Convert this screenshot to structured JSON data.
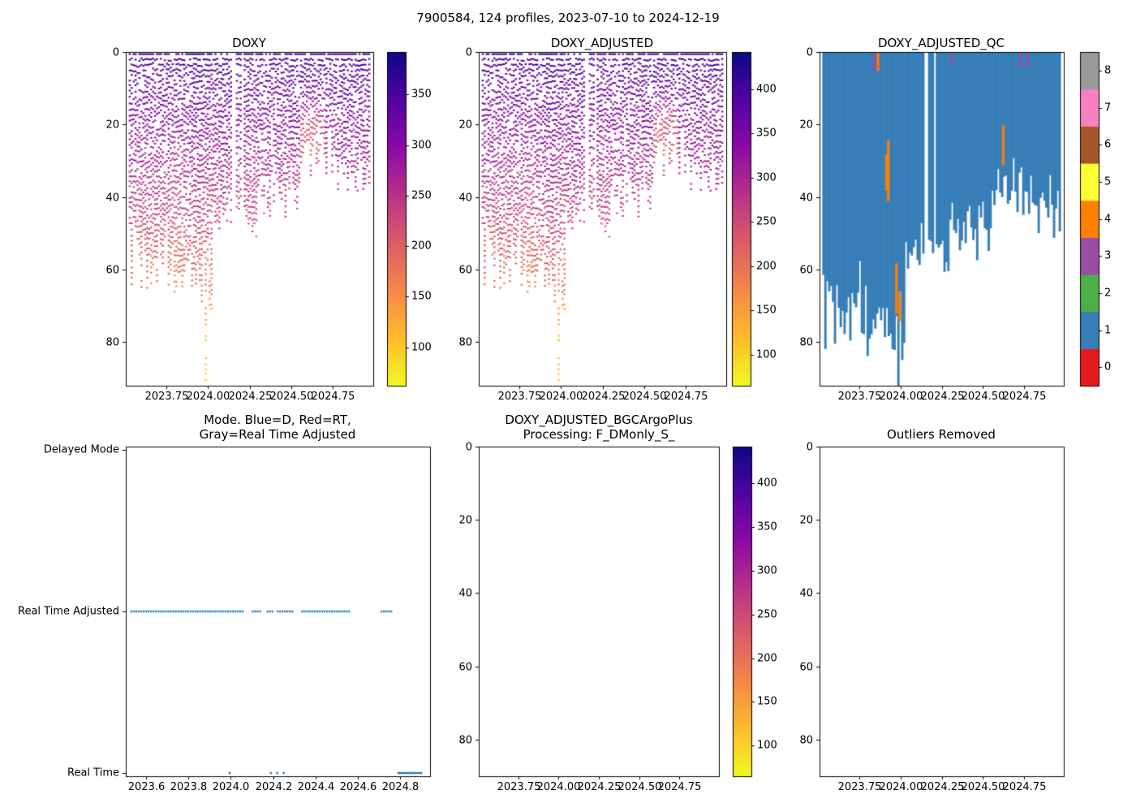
{
  "figure": {
    "title": "7900584, 124 profiles, 2023-07-10 to 2024-12-19",
    "background_color": "#ffffff",
    "float_id": "7900584",
    "n_profiles": 124,
    "date_range": "2023-07-10 to 2024-12-19"
  },
  "chart_data": [
    {
      "id": "doxy",
      "type": "heatmap",
      "title": "DOXY",
      "xlim": [
        2023.506,
        2024.994
      ],
      "ylim": [
        0,
        92
      ],
      "x_tick_values": [
        2023.75,
        2024.0,
        2024.25,
        2024.5,
        2024.75
      ],
      "x_tick_labels": [
        "2023.75",
        "2024.00",
        "2024.25",
        "2024.50",
        "2024.75"
      ],
      "y_tick_values": [
        0,
        20,
        40,
        60,
        80
      ],
      "y_tick_labels": [
        "0",
        "20",
        "40",
        "60",
        "80"
      ],
      "colorbar": {
        "colormap": "plasma_r",
        "vmin": 62,
        "vmax": 392,
        "tick_values": [
          100,
          150,
          200,
          250,
          300,
          350
        ],
        "tick_labels": [
          "100",
          "150",
          "200",
          "250",
          "300",
          "350"
        ]
      },
      "data_model": {
        "n_profiles": 124,
        "t_start": 2023.53,
        "t_end": 2024.97,
        "surface_value": 352,
        "gradient_per_m": -2.9,
        "noise": 26,
        "deep_profile_t": 2023.99,
        "deep_profile_depth": 91,
        "low_patch": {
          "t0": 2024.56,
          "t1": 2024.71,
          "d0": 10,
          "d1": 36,
          "delta": -85
        },
        "time_gaps": [
          [
            2024.148,
            2024.168
          ],
          [
            2024.198,
            2024.214
          ]
        ]
      }
    },
    {
      "id": "doxy_adjusted",
      "type": "heatmap",
      "title": "DOXY_ADJUSTED",
      "value_scale": 1.13,
      "xlim": [
        2023.506,
        2024.994
      ],
      "ylim": [
        0,
        92
      ],
      "x_tick_values": [
        2023.75,
        2024.0,
        2024.25,
        2024.5,
        2024.75
      ],
      "x_tick_labels": [
        "2023.75",
        "2024.00",
        "2024.25",
        "2024.50",
        "2024.75"
      ],
      "y_tick_values": [
        0,
        20,
        40,
        60,
        80
      ],
      "y_tick_labels": [
        "0",
        "20",
        "40",
        "60",
        "80"
      ],
      "colorbar": {
        "colormap": "plasma_r",
        "vmin": 65,
        "vmax": 442,
        "tick_values": [
          100,
          150,
          200,
          250,
          300,
          350,
          400
        ],
        "tick_labels": [
          "100",
          "150",
          "200",
          "250",
          "300",
          "350",
          "400"
        ]
      }
    },
    {
      "id": "qc",
      "type": "heatmap",
      "title": "DOXY_ADJUSTED_QC",
      "xlim": [
        2023.506,
        2024.994
      ],
      "ylim": [
        0,
        92
      ],
      "x_tick_values": [
        2023.75,
        2024.0,
        2024.25,
        2024.5,
        2024.75
      ],
      "x_tick_labels": [
        "2023.75",
        "2024.00",
        "2024.25",
        "2024.50",
        "2024.75"
      ],
      "y_tick_values": [
        0,
        20,
        40,
        60,
        80
      ],
      "y_tick_labels": [
        "0",
        "20",
        "40",
        "60",
        "80"
      ],
      "colorbar": {
        "type": "discrete",
        "colormap": "qc_flags",
        "colors": [
          "#e41a1c",
          "#377eb8",
          "#4daf4a",
          "#984ea3",
          "#ff7f00",
          "#ffff33",
          "#a65628",
          "#f781bf",
          "#999999"
        ],
        "tick_labels": [
          "0",
          "1",
          "2",
          "3",
          "4",
          "5",
          "6",
          "7",
          "8"
        ]
      },
      "dominant_qc": 1,
      "qc_anomalies": [
        {
          "qc": 4,
          "t": 2023.915,
          "d0": 28,
          "d1": 38
        },
        {
          "qc": 4,
          "t": 2023.925,
          "d0": 24,
          "d1": 41
        },
        {
          "qc": 4,
          "t": 2023.975,
          "d0": 58,
          "d1": 72
        },
        {
          "qc": 4,
          "t": 2023.995,
          "d0": 66,
          "d1": 74
        },
        {
          "qc": 4,
          "t": 2023.862,
          "d0": 0,
          "d1": 5
        },
        {
          "qc": 3,
          "t": 2023.845,
          "d0": 0,
          "d1": 5
        },
        {
          "qc": 3,
          "t": 2024.315,
          "d0": 0,
          "d1": 3
        },
        {
          "qc": 4,
          "t": 2024.625,
          "d0": 20,
          "d1": 31
        },
        {
          "qc": 3,
          "t": 2024.725,
          "d0": 0,
          "d1": 4
        },
        {
          "qc": 3,
          "t": 2024.775,
          "d0": 0,
          "d1": 4
        }
      ]
    },
    {
      "id": "mode",
      "type": "scatter",
      "title_lines": [
        "Mode. Blue=D, Red=RT,",
        "Gray=Real Time Adjusted"
      ],
      "xlim": [
        2023.504,
        2024.942
      ],
      "x_tick_values": [
        2023.6,
        2023.8,
        2024.0,
        2024.2,
        2024.4,
        2024.6,
        2024.8
      ],
      "x_tick_labels": [
        "2023.6",
        "2023.8",
        "2024.0",
        "2024.2",
        "2024.4",
        "2024.6",
        "2024.8"
      ],
      "y_categories": [
        "Delayed Mode",
        "Real Time Adjusted",
        "Real Time"
      ],
      "marker_color": "#1f77b4",
      "series": [
        {
          "name": "Real Time Adjusted",
          "marker_w": 2.2,
          "x_ranges": [
            [
              2023.53,
              2024.065
            ],
            [
              2024.095,
              2024.3
            ],
            [
              2024.33,
              2024.565
            ],
            [
              2024.705,
              2024.765
            ]
          ]
        },
        {
          "name": "Real Time",
          "marker_w": 3.2,
          "x_points": [
            2023.995,
            2024.19,
            2024.22,
            2024.25
          ],
          "x_ranges": [
            [
              2024.787,
              2024.905
            ]
          ]
        }
      ]
    },
    {
      "id": "bgc_processing",
      "type": "heatmap",
      "title_lines": [
        "DOXY_ADJUSTED_BGCArgoPlus",
        "Processing: F_DMonly_S_"
      ],
      "empty": true,
      "xlim": [
        2023.506,
        2024.994
      ],
      "ylim": [
        0,
        90
      ],
      "x_tick_values": [
        2023.75,
        2024.0,
        2024.25,
        2024.5,
        2024.75
      ],
      "x_tick_labels": [
        "2023.75",
        "2024.00",
        "2024.25",
        "2024.50",
        "2024.75"
      ],
      "y_tick_values": [
        0,
        20,
        40,
        60,
        80
      ],
      "y_tick_labels": [
        "0",
        "20",
        "40",
        "60",
        "80"
      ],
      "colorbar": {
        "colormap": "plasma_r",
        "vmin": 65,
        "vmax": 442,
        "tick_values": [
          100,
          150,
          200,
          250,
          300,
          350,
          400
        ],
        "tick_labels": [
          "100",
          "150",
          "200",
          "250",
          "300",
          "350",
          "400"
        ]
      }
    },
    {
      "id": "outliers_removed",
      "type": "heatmap",
      "title": "Outliers Removed",
      "empty": true,
      "xlim": [
        2023.506,
        2024.994
      ],
      "ylim": [
        0,
        90
      ],
      "x_tick_values": [
        2023.75,
        2024.0,
        2024.25,
        2024.5,
        2024.75
      ],
      "x_tick_labels": [
        "2023.75",
        "2024.00",
        "2024.25",
        "2024.50",
        "2024.75"
      ],
      "y_tick_values": [
        0,
        20,
        40,
        60,
        80
      ],
      "y_tick_labels": [
        "0",
        "20",
        "40",
        "60",
        "80"
      ]
    }
  ]
}
